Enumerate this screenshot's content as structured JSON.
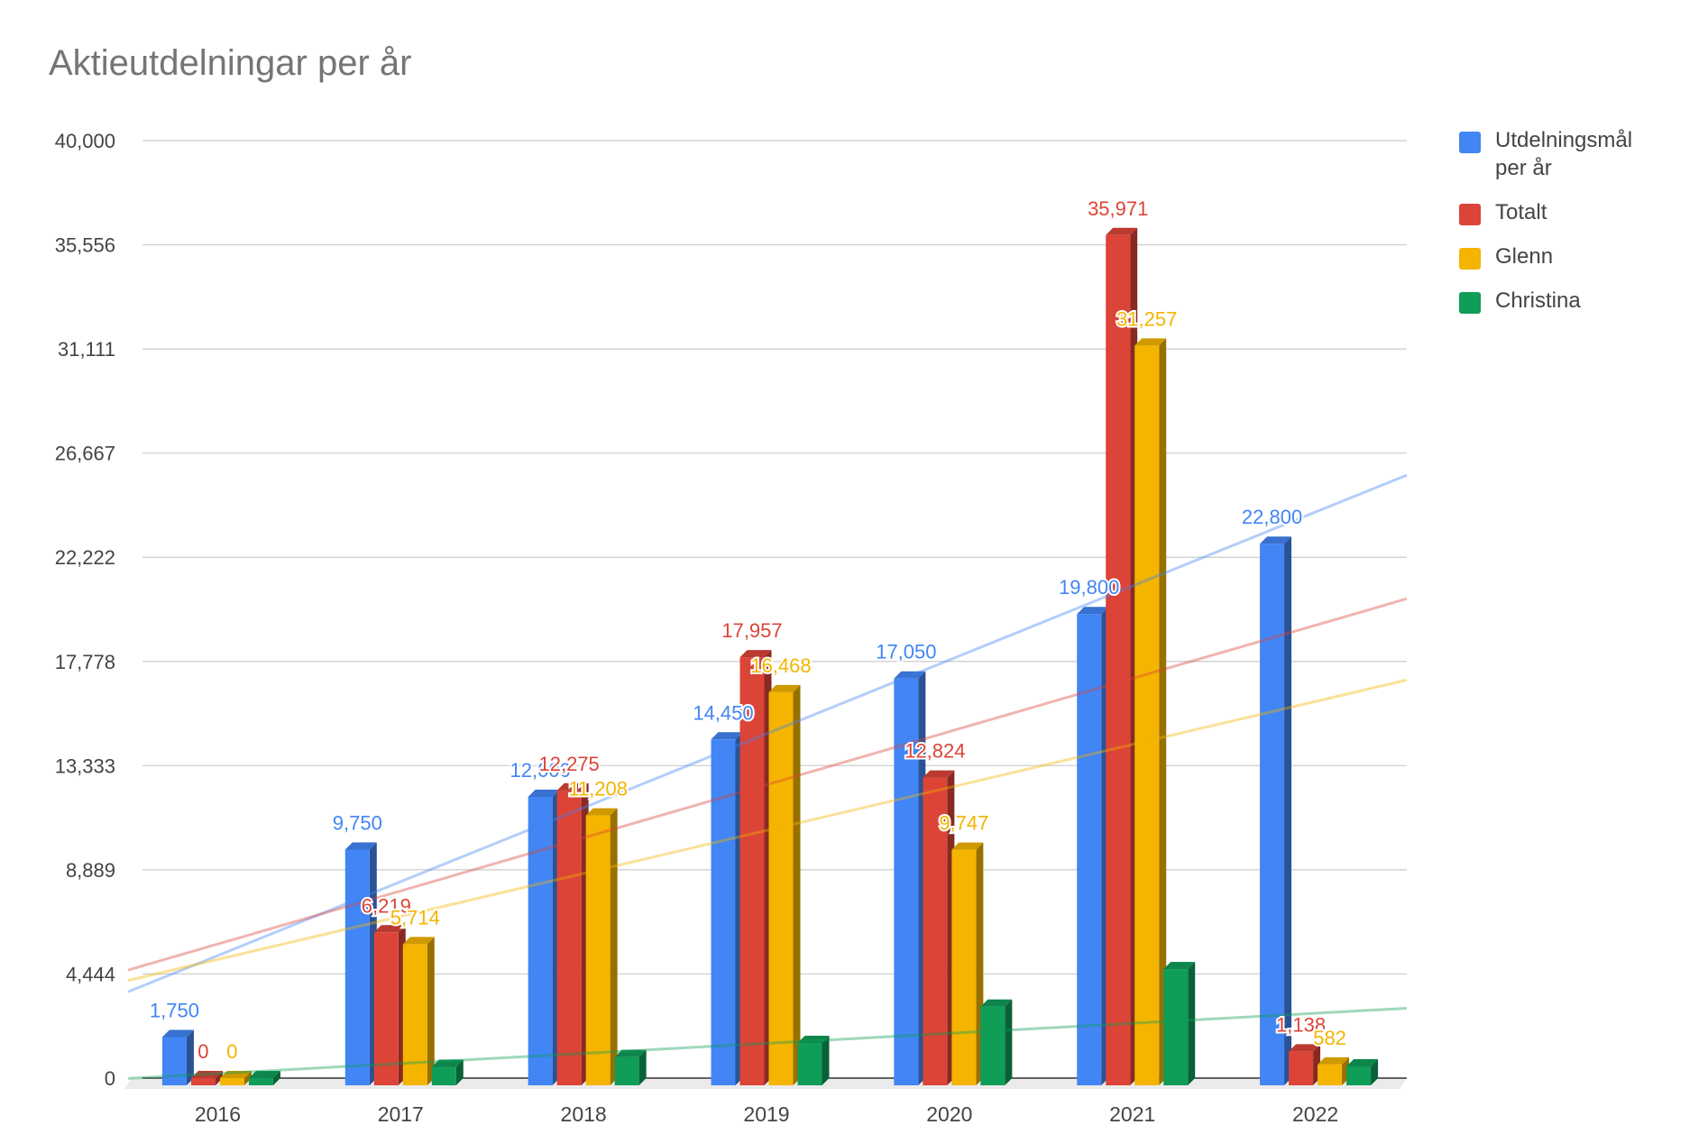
{
  "chart_data": {
    "type": "bar",
    "title": "Aktieutdelningar per år",
    "categories": [
      "2016",
      "2017",
      "2018",
      "2019",
      "2020",
      "2021",
      "2022"
    ],
    "ylim": [
      0,
      40000
    ],
    "yticks": [
      "0",
      "4,444",
      "8,889",
      "13,333",
      "17,778",
      "22,222",
      "26,667",
      "31,111",
      "35,556",
      "40,000"
    ],
    "grid": true,
    "legend_position": "right",
    "trendlines": true,
    "series": [
      {
        "name": "Utdelningsmål per år",
        "color": "#4285f4",
        "values": [
          1750,
          9750,
          12000,
          14450,
          17050,
          19800,
          22800
        ],
        "labels": [
          "1,750",
          "9,750",
          "12,000",
          "14,450",
          "17,050",
          "19,800",
          "22,800"
        ]
      },
      {
        "name": "Totalt",
        "color": "#db4437",
        "values": [
          0,
          6219,
          12275,
          17957,
          12824,
          35971,
          1138
        ],
        "labels": [
          "0",
          "6,219",
          "12,275",
          "17,957",
          "12,824",
          "35,971",
          "1,138"
        ]
      },
      {
        "name": "Glenn",
        "color": "#f4b400",
        "values": [
          0,
          5714,
          11208,
          16468,
          9747,
          31257,
          582
        ],
        "labels": [
          "0",
          "5,714",
          "11,208",
          "16,468",
          "9,747",
          "31,257",
          "582"
        ]
      },
      {
        "name": "Christina",
        "color": "#0f9d58",
        "values": [
          0,
          480,
          900,
          1500,
          3050,
          4650,
          500
        ],
        "labels": []
      }
    ]
  },
  "legend": [
    {
      "label": "Utdelningsmål per år",
      "color": "#4285f4"
    },
    {
      "label": "Totalt",
      "color": "#db4437"
    },
    {
      "label": "Glenn",
      "color": "#f4b400"
    },
    {
      "label": "Christina",
      "color": "#0f9d58"
    }
  ]
}
